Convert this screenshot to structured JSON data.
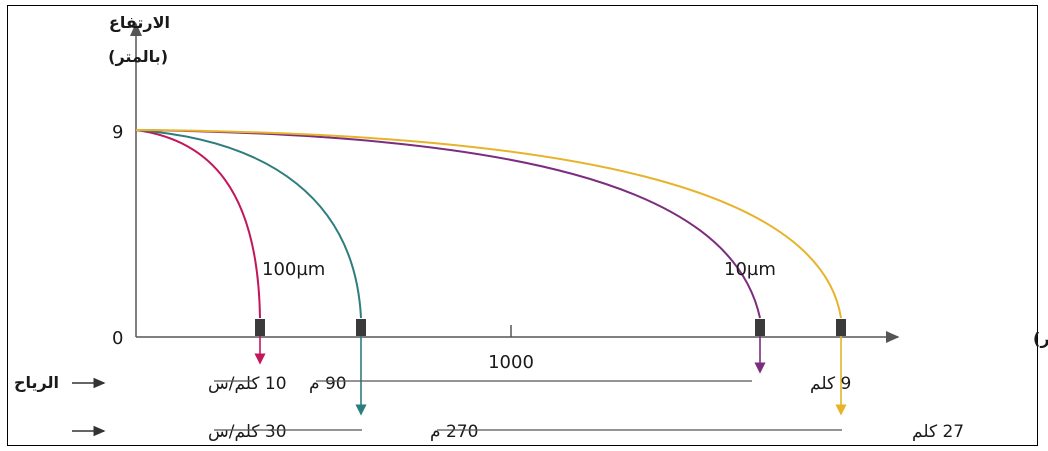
{
  "labels": {
    "y_axis_line1": "الارتفاع",
    "y_axis_line2": "(بالمتر)",
    "x_axis": "المسافة (بالمتر)",
    "y_tick_top": "9",
    "y_tick_zero": "0",
    "x_tick_mid": "1000",
    "particle_large": "100µm",
    "particle_small": "10µm",
    "wind_label": "الرياح",
    "wind1_speed": "10 كلم/س",
    "wind2_speed": "30 كلم/س",
    "d_large_wind1": "90 م",
    "d_small_wind1": "9 كلم",
    "d_large_wind2": "270 م",
    "d_small_wind2": "27 كلم"
  },
  "colors": {
    "axis": "#555555",
    "magenta": "#c2185b",
    "teal": "#2e7d7d",
    "purple": "#7b2d7f",
    "gold": "#e6b32a",
    "marker": "#3a3a3a"
  }
}
